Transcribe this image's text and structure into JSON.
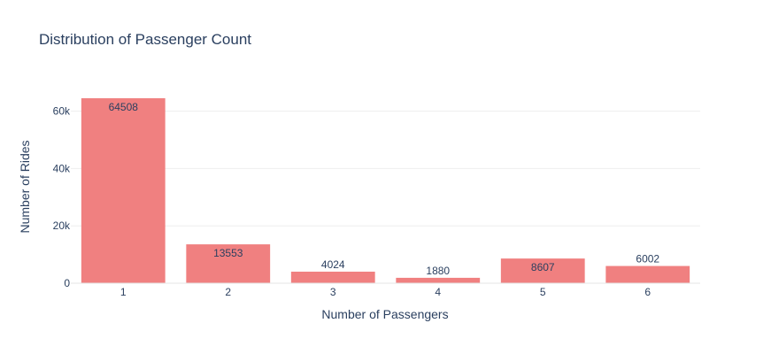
{
  "chart_data": {
    "type": "bar",
    "title": "Distribution of Passenger Count",
    "xlabel": "Number of Passengers",
    "ylabel": "Number of Rides",
    "categories": [
      "1",
      "2",
      "3",
      "4",
      "5",
      "6"
    ],
    "values": [
      64508,
      13553,
      4024,
      1880,
      8607,
      6002
    ],
    "data_labels": [
      "64508",
      "13553",
      "4024",
      "1880",
      "8607",
      "6002"
    ],
    "y_ticks": [
      0,
      20000,
      40000,
      60000
    ],
    "y_tick_labels": [
      "0",
      "20k",
      "40k",
      "60k"
    ],
    "ylim": [
      0,
      67903
    ],
    "grid": true,
    "bar_color": "#f08080"
  }
}
